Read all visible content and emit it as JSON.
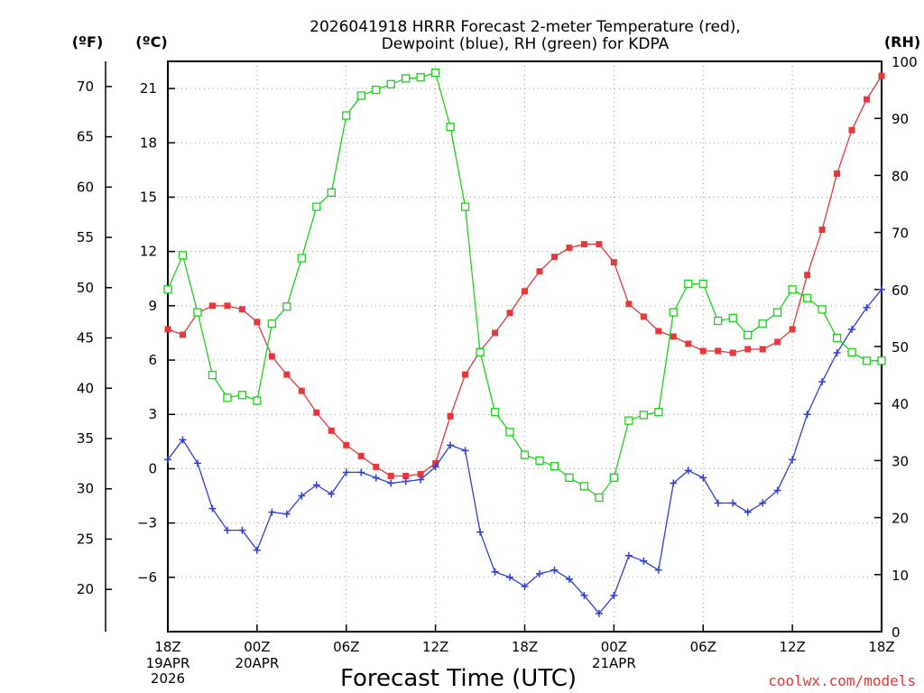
{
  "chart_data": {
    "type": "line",
    "title_line1": "2026041918 HRRR Forecast 2-meter Temperature (red),",
    "title_line2": "Dewpoint (blue), RH (green) for KDPA",
    "unit_f": "(ºF)",
    "unit_c": "(ºC)",
    "unit_rh": "(RH)",
    "xlabel": "Forecast Time (UTC)",
    "credit": "coolwx.com/models",
    "hours_range": [
      0,
      48
    ],
    "c_range": [
      -9,
      22.5
    ],
    "rh_range": [
      0,
      100
    ],
    "c_ticks": [
      -6,
      -3,
      0,
      3,
      6,
      9,
      12,
      15,
      18,
      21
    ],
    "f_ticks": [
      20,
      25,
      30,
      35,
      40,
      45,
      50,
      55,
      60,
      65,
      70
    ],
    "rh_ticks": [
      0,
      10,
      20,
      30,
      40,
      50,
      60,
      70,
      80,
      90,
      100
    ],
    "x_ticks": [
      {
        "hour": 0,
        "label": "18Z",
        "date": "19APR",
        "year": "2026"
      },
      {
        "hour": 6,
        "label": "00Z",
        "date": "20APR",
        "year": ""
      },
      {
        "hour": 12,
        "label": "06Z",
        "date": "",
        "year": ""
      },
      {
        "hour": 18,
        "label": "12Z",
        "date": "",
        "year": ""
      },
      {
        "hour": 24,
        "label": "18Z",
        "date": "",
        "year": ""
      },
      {
        "hour": 30,
        "label": "00Z",
        "date": "21APR",
        "year": ""
      },
      {
        "hour": 36,
        "label": "06Z",
        "date": "",
        "year": ""
      },
      {
        "hour": 42,
        "label": "12Z",
        "date": "",
        "year": ""
      },
      {
        "hour": 48,
        "label": "18Z",
        "date": "",
        "year": ""
      }
    ],
    "series": [
      {
        "name": "Temperature",
        "unit": "C",
        "color": "#e8363a",
        "marker": "filled-square",
        "values": [
          7.7,
          7.4,
          8.6,
          9.0,
          9.0,
          8.8,
          8.1,
          6.2,
          5.2,
          4.3,
          3.1,
          2.1,
          1.3,
          0.7,
          0.1,
          -0.4,
          -0.4,
          -0.3,
          0.3,
          2.9,
          5.2,
          6.5,
          7.5,
          8.6,
          9.8,
          10.9,
          11.7,
          12.2,
          12.4,
          12.4,
          11.4,
          9.1,
          8.4,
          7.6,
          7.3,
          6.9,
          6.5,
          6.5,
          6.4,
          6.6,
          6.6,
          7.0,
          7.7,
          10.7,
          13.2,
          16.3,
          18.7,
          20.4,
          21.7
        ]
      },
      {
        "name": "Dewpoint",
        "unit": "C",
        "color": "#2b3de0",
        "marker": "plus",
        "values": [
          0.5,
          1.6,
          0.3,
          -2.2,
          -3.4,
          -3.4,
          -4.5,
          -2.4,
          -2.5,
          -1.5,
          -0.9,
          -1.4,
          -0.2,
          -0.2,
          -0.5,
          -0.8,
          -0.7,
          -0.6,
          0.1,
          1.3,
          1.0,
          -3.5,
          -5.7,
          -6.0,
          -6.5,
          -5.8,
          -5.6,
          -6.1,
          -7.0,
          -8.0,
          -7.0,
          -4.8,
          -5.1,
          -5.6,
          -0.8,
          -0.1,
          -0.5,
          -1.9,
          -1.9,
          -2.4,
          -1.9,
          -1.2,
          0.5,
          3.0,
          4.8,
          6.4,
          7.7,
          8.9,
          9.9
        ]
      },
      {
        "name": "RH",
        "unit": "%",
        "color": "#1bd11b",
        "marker": "open-square",
        "values": [
          60,
          66,
          56,
          45,
          41,
          41.5,
          40.5,
          54,
          57,
          65.5,
          74.5,
          77,
          90.5,
          94,
          95,
          96,
          97,
          97.2,
          98,
          88.5,
          74.5,
          49,
          38.5,
          35,
          31,
          30,
          29,
          27,
          25.5,
          23.5,
          27,
          37,
          38,
          38.5,
          56,
          61,
          61,
          54.5,
          55,
          52,
          54,
          56,
          60,
          58.5,
          56.5,
          51.5,
          49,
          47.5,
          47.5
        ]
      }
    ]
  }
}
